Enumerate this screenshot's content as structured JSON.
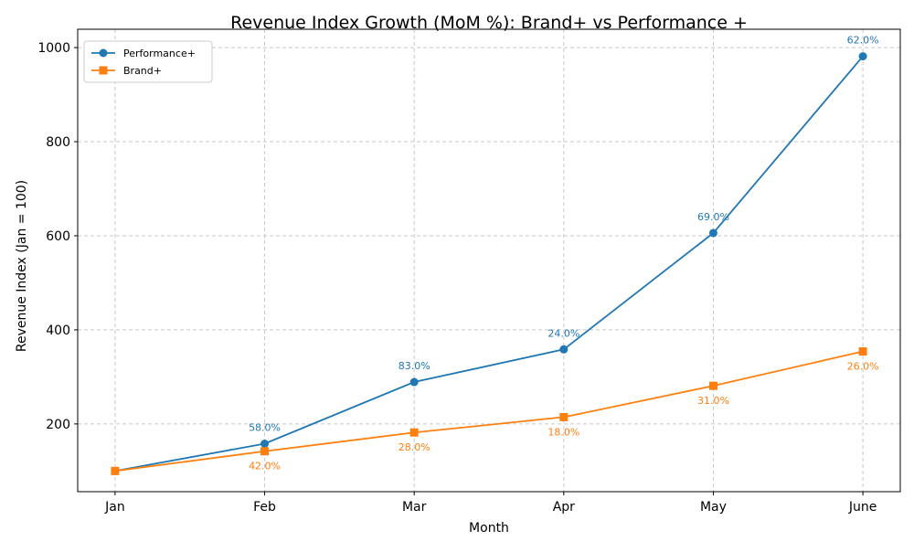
{
  "chart_data": {
    "type": "line",
    "title": "Revenue Index Growth (MoM %): Brand+ vs Performance +",
    "xlabel": "Month",
    "ylabel": "Revenue Index (Jan = 100)",
    "categories": [
      "Jan",
      "Feb",
      "Mar",
      "Apr",
      "May",
      "June"
    ],
    "ylim": [
      56,
      1039
    ],
    "yticks": [
      200,
      400,
      600,
      800,
      1000
    ],
    "grid": true,
    "legend_position": "top-left",
    "series": [
      {
        "name": "Performance+",
        "color": "#1f77b4",
        "marker": "circle",
        "values": [
          100,
          158,
          289.1,
          358.5,
          605.9,
          981.5
        ],
        "labels": [
          "",
          "58.0%",
          "83.0%",
          "24.0%",
          "69.0%",
          "62.0%"
        ],
        "label_position": "above"
      },
      {
        "name": "Brand+",
        "color": "#ff7f0e",
        "marker": "square",
        "values": [
          100,
          142,
          181.8,
          214.5,
          281.0,
          354.1
        ],
        "labels": [
          "",
          "42.0%",
          "28.0%",
          "18.0%",
          "31.0%",
          "26.0%"
        ],
        "label_position": "below"
      }
    ]
  }
}
